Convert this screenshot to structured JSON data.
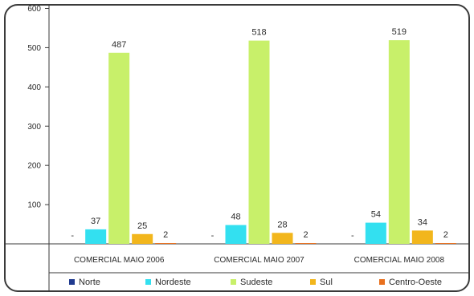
{
  "chart_data": {
    "type": "bar",
    "categories": [
      "COMERCIAL MAIO 2006",
      "COMERCIAL MAIO 2007",
      "COMERCIAL MAIO 2008"
    ],
    "series": [
      {
        "name": "Norte",
        "color": "#1f3a8f",
        "values": [
          0,
          0,
          0
        ],
        "labels": [
          "-",
          "-",
          "-"
        ]
      },
      {
        "name": "Nordeste",
        "color": "#33e0f0",
        "values": [
          37,
          48,
          54
        ],
        "labels": [
          "37",
          "48",
          "54"
        ]
      },
      {
        "name": "Sudeste",
        "color": "#c8f06a",
        "values": [
          487,
          518,
          519
        ],
        "labels": [
          "487",
          "518",
          "519"
        ]
      },
      {
        "name": "Sul",
        "color": "#f2b61c",
        "values": [
          25,
          28,
          34
        ],
        "labels": [
          "25",
          "28",
          "34"
        ]
      },
      {
        "name": "Centro-Oeste",
        "color": "#e8701e",
        "values": [
          2,
          2,
          2
        ],
        "labels": [
          "2",
          "2",
          "2"
        ]
      }
    ],
    "yticks": [
      100,
      200,
      300,
      400,
      500,
      600
    ],
    "ylim": [
      0,
      600
    ],
    "grid": false,
    "legend_position": "bottom"
  }
}
